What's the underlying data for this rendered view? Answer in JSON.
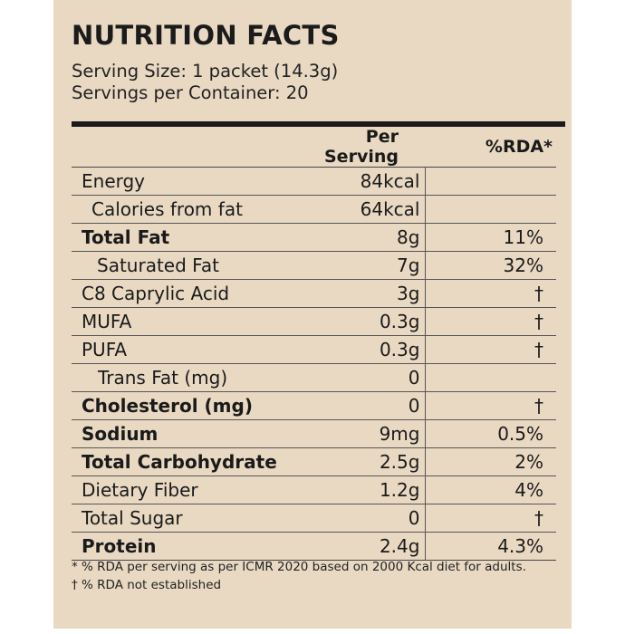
{
  "title": "NUTRITION FACTS",
  "serving_size": "Serving Size: 1 packet (14.3g)",
  "servings_per_container": "Servings per Container: 20",
  "headers": {
    "nutrient": "",
    "per_serving": "Per Serving",
    "rda": "%RDA*"
  },
  "rows": [
    {
      "name": "Energy",
      "per_serving": "84kcal",
      "rda": "",
      "bold": false,
      "indent": 0
    },
    {
      "name": "Calories from fat",
      "per_serving": "64kcal",
      "rda": "",
      "bold": false,
      "indent": 1
    },
    {
      "name": "Total Fat",
      "per_serving": "8g",
      "rda": "11%",
      "bold": true,
      "indent": 0
    },
    {
      "name": "Saturated Fat",
      "per_serving": "7g",
      "rda": "32%",
      "bold": false,
      "indent": 2
    },
    {
      "name": "C8 Caprylic Acid",
      "per_serving": "3g",
      "rda": "†",
      "bold": false,
      "indent": 0
    },
    {
      "name": "MUFA",
      "per_serving": "0.3g",
      "rda": "†",
      "bold": false,
      "indent": 0
    },
    {
      "name": "PUFA",
      "per_serving": "0.3g",
      "rda": "†",
      "bold": false,
      "indent": 0
    },
    {
      "name": "Trans Fat (mg)",
      "per_serving": "0",
      "rda": "",
      "bold": false,
      "indent": 3
    },
    {
      "name": "Cholesterol (mg)",
      "per_serving": "0",
      "rda": "†",
      "bold": true,
      "indent": 0
    },
    {
      "name": "Sodium",
      "per_serving": "9mg",
      "rda": "0.5%",
      "bold": true,
      "indent": 0
    },
    {
      "name": "Total Carbohydrate",
      "per_serving": "2.5g",
      "rda": "2%",
      "bold": true,
      "indent": 0
    },
    {
      "name": "Dietary Fiber",
      "per_serving": "1.2g",
      "rda": "4%",
      "bold": false,
      "indent": 0
    },
    {
      "name": "Total Sugar",
      "per_serving": "0",
      "rda": "†",
      "bold": false,
      "indent": 0
    },
    {
      "name": "Protein",
      "per_serving": "2.4g",
      "rda": "4.3%",
      "bold": true,
      "indent": 0
    }
  ],
  "footnotes": [
    "* % RDA per serving as per ICMR 2020 based on 2000 Kcal diet for adults.",
    "† % RDA not established"
  ]
}
